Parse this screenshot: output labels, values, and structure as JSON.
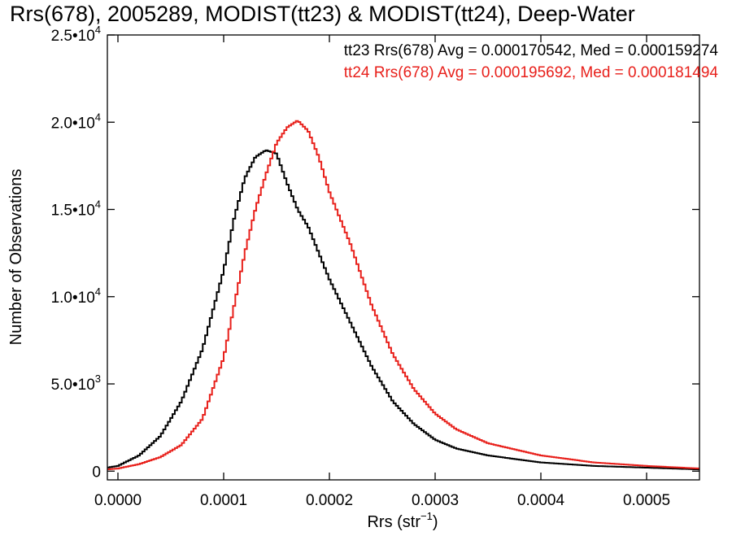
{
  "chart_data": {
    "type": "line",
    "title": "Rrs(678), 2005289, MODIST(tt23) & MODIST(tt24), Deep-Water",
    "xlabel": "Rrs (str",
    "xlabel_sup": "−1",
    "xlabel_end": ")",
    "ylabel": "Number of Observations",
    "xlim": [
      -1e-05,
      0.00055
    ],
    "ylim": [
      -500,
      25000
    ],
    "x_ticks": [
      {
        "value": 0.0,
        "label": "0.0000"
      },
      {
        "value": 0.0001,
        "label": "0.0001"
      },
      {
        "value": 0.0002,
        "label": "0.0002"
      },
      {
        "value": 0.0003,
        "label": "0.0003"
      },
      {
        "value": 0.0004,
        "label": "0.0004"
      },
      {
        "value": 0.0005,
        "label": "0.0005"
      }
    ],
    "y_ticks": [
      {
        "value": 0,
        "base": "0",
        "exp": ""
      },
      {
        "value": 5000,
        "base": "5.0•10",
        "exp": "3"
      },
      {
        "value": 10000,
        "base": "1.0•10",
        "exp": "4"
      },
      {
        "value": 15000,
        "base": "1.5•10",
        "exp": "4"
      },
      {
        "value": 20000,
        "base": "2.0•10",
        "exp": "4"
      },
      {
        "value": 25000,
        "base": "2.5•10",
        "exp": "4"
      }
    ],
    "grid": false,
    "legend_position": "top-right",
    "series": [
      {
        "name": "tt23",
        "color": "#000000",
        "legend": "tt23 Rrs(678) Avg = 0.000170542, Med = 0.000159274",
        "x": [
          -1e-05,
          0.0,
          2e-05,
          4e-05,
          6e-05,
          8e-05,
          0.0001,
          0.00011,
          0.00012,
          0.00013,
          0.00014,
          0.00015,
          0.00016,
          0.00017,
          0.00018,
          0.0002,
          0.00022,
          0.00024,
          0.00026,
          0.00028,
          0.0003,
          0.00032,
          0.00035,
          0.0004,
          0.00045,
          0.0005,
          0.00055
        ],
        "y": [
          200,
          300,
          900,
          2000,
          4000,
          7000,
          11500,
          14500,
          16800,
          18000,
          18400,
          18200,
          16500,
          15000,
          14000,
          11000,
          8500,
          6000,
          4000,
          2700,
          1800,
          1300,
          900,
          500,
          300,
          200,
          100
        ]
      },
      {
        "name": "tt24",
        "color": "#e8201b",
        "legend": "tt24 Rrs(678) Avg = 0.000195692, Med = 0.000181494",
        "x": [
          -1e-05,
          0.0,
          2e-05,
          4e-05,
          6e-05,
          8e-05,
          0.0001,
          0.00012,
          0.00013,
          0.00014,
          0.00015,
          0.00016,
          0.00017,
          0.00018,
          0.00019,
          0.0002,
          0.00022,
          0.00024,
          0.00026,
          0.00028,
          0.0003,
          0.00032,
          0.00035,
          0.0004,
          0.00045,
          0.0005,
          0.00055
        ],
        "y": [
          100,
          150,
          400,
          800,
          1500,
          3000,
          6500,
          12500,
          15000,
          17000,
          18800,
          19700,
          20100,
          19500,
          18000,
          16000,
          13000,
          9500,
          6700,
          4700,
          3300,
          2400,
          1600,
          900,
          500,
          300,
          150
        ]
      }
    ]
  }
}
